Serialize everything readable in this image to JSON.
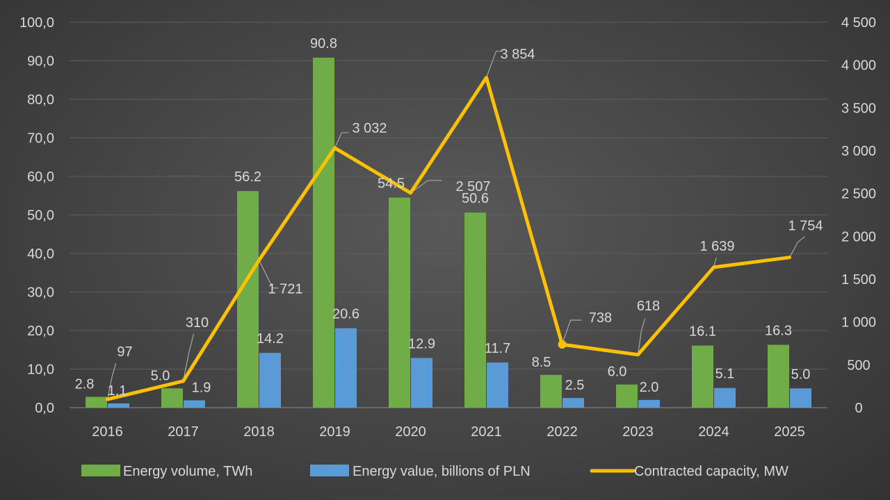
{
  "chart_data": {
    "type": "bar",
    "categories": [
      "2016",
      "2017",
      "2018",
      "2019",
      "2020",
      "2021",
      "2022",
      "2023",
      "2024",
      "2025"
    ],
    "series": [
      {
        "name": "Energy volume, TWh",
        "type": "bar",
        "axis": "left",
        "color": "#70ad47",
        "values": [
          2.8,
          5.0,
          56.2,
          90.8,
          54.5,
          50.6,
          8.5,
          6.0,
          16.1,
          16.3
        ],
        "labels": [
          "2.8",
          "5.0",
          "56.2",
          "90.8",
          "54.5",
          "50.6",
          "8.5",
          "6.0",
          "16.1",
          "16.3"
        ]
      },
      {
        "name": "Energy value, billions of PLN",
        "type": "bar",
        "axis": "left",
        "color": "#5b9bd5",
        "values": [
          1.1,
          1.9,
          14.2,
          20.6,
          12.9,
          11.7,
          2.5,
          2.0,
          5.1,
          5.0
        ],
        "labels": [
          "1.1",
          "1.9",
          "14.2",
          "20.6",
          "12.9",
          "11.7",
          "2.5",
          "2.0",
          "5.1",
          "5.0"
        ]
      },
      {
        "name": "Contracted capacity, MW",
        "type": "line",
        "axis": "right",
        "color": "#ffc000",
        "values": [
          97,
          310,
          1721,
          3032,
          2507,
          3854,
          738,
          618,
          1639,
          1754
        ],
        "labels": [
          "97",
          "310",
          "1 721",
          "3 032",
          "2 507",
          "3 854",
          "738",
          "618",
          "1 639",
          "1 754"
        ]
      }
    ],
    "y_left": {
      "min": 0,
      "max": 100,
      "ticks": [
        "0,0",
        "10,0",
        "20,0",
        "30,0",
        "40,0",
        "50,0",
        "60,0",
        "70,0",
        "80,0",
        "90,0",
        "100,0"
      ]
    },
    "y_right": {
      "min": 0,
      "max": 4500,
      "ticks": [
        "0",
        "500",
        "1 000",
        "1 500",
        "2 000",
        "2 500",
        "3 000",
        "3 500",
        "4 000",
        "4 500"
      ]
    },
    "grid": true,
    "legend_position": "bottom"
  }
}
